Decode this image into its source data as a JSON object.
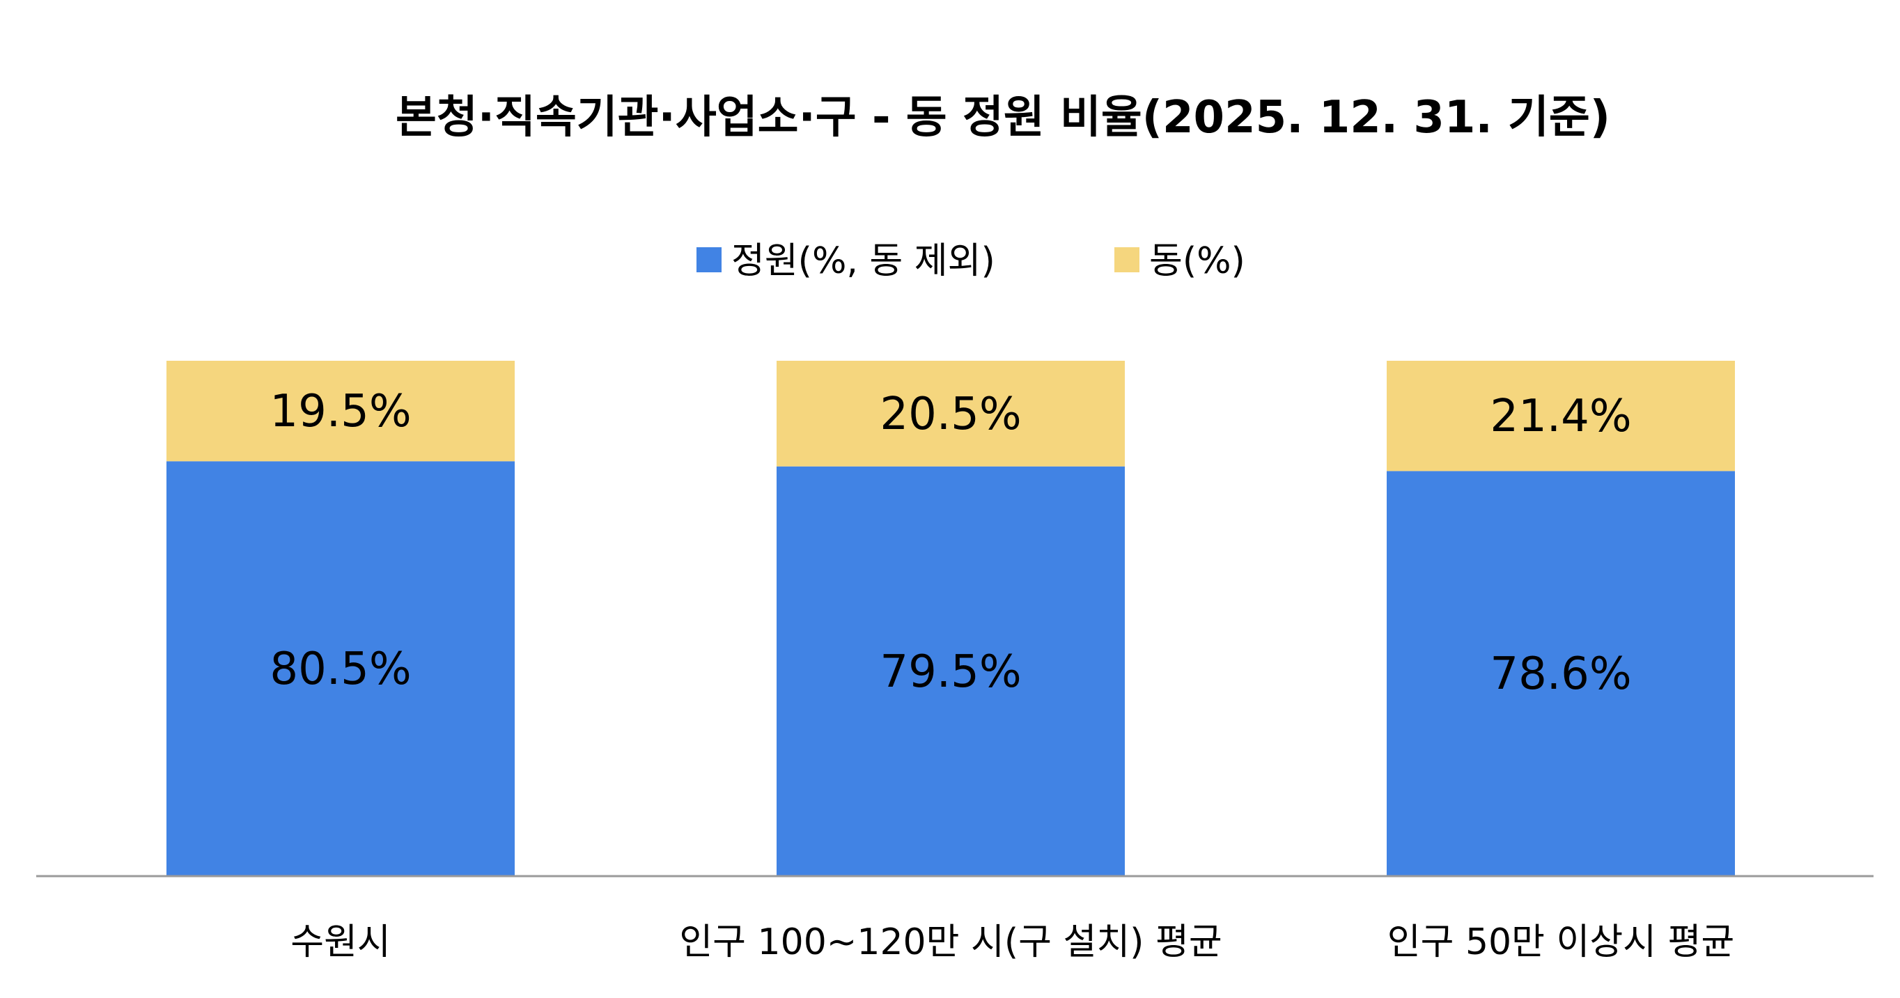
{
  "chart_data": {
    "type": "bar",
    "stacked": true,
    "title": "본청·직속기관·사업소·구  -  동 정원 비율(2025. 12. 31. 기준)",
    "categories": [
      "수원시",
      "인구 100~120만 시(구 설치) 평균",
      "인구 50만 이상시 평균"
    ],
    "series": [
      {
        "name": "정원(%, 동 제외)",
        "color": "#4183E4",
        "values": [
          80.5,
          79.5,
          78.6
        ],
        "labels": [
          "80.5%",
          "79.5%",
          "78.6%"
        ]
      },
      {
        "name": "동(%)",
        "color": "#F5D67E",
        "values": [
          19.5,
          20.5,
          21.4
        ],
        "labels": [
          "19.5%",
          "20.5%",
          "21.4%"
        ]
      }
    ],
    "ylim": [
      0,
      100
    ],
    "grid": false,
    "legend_position": "top"
  }
}
